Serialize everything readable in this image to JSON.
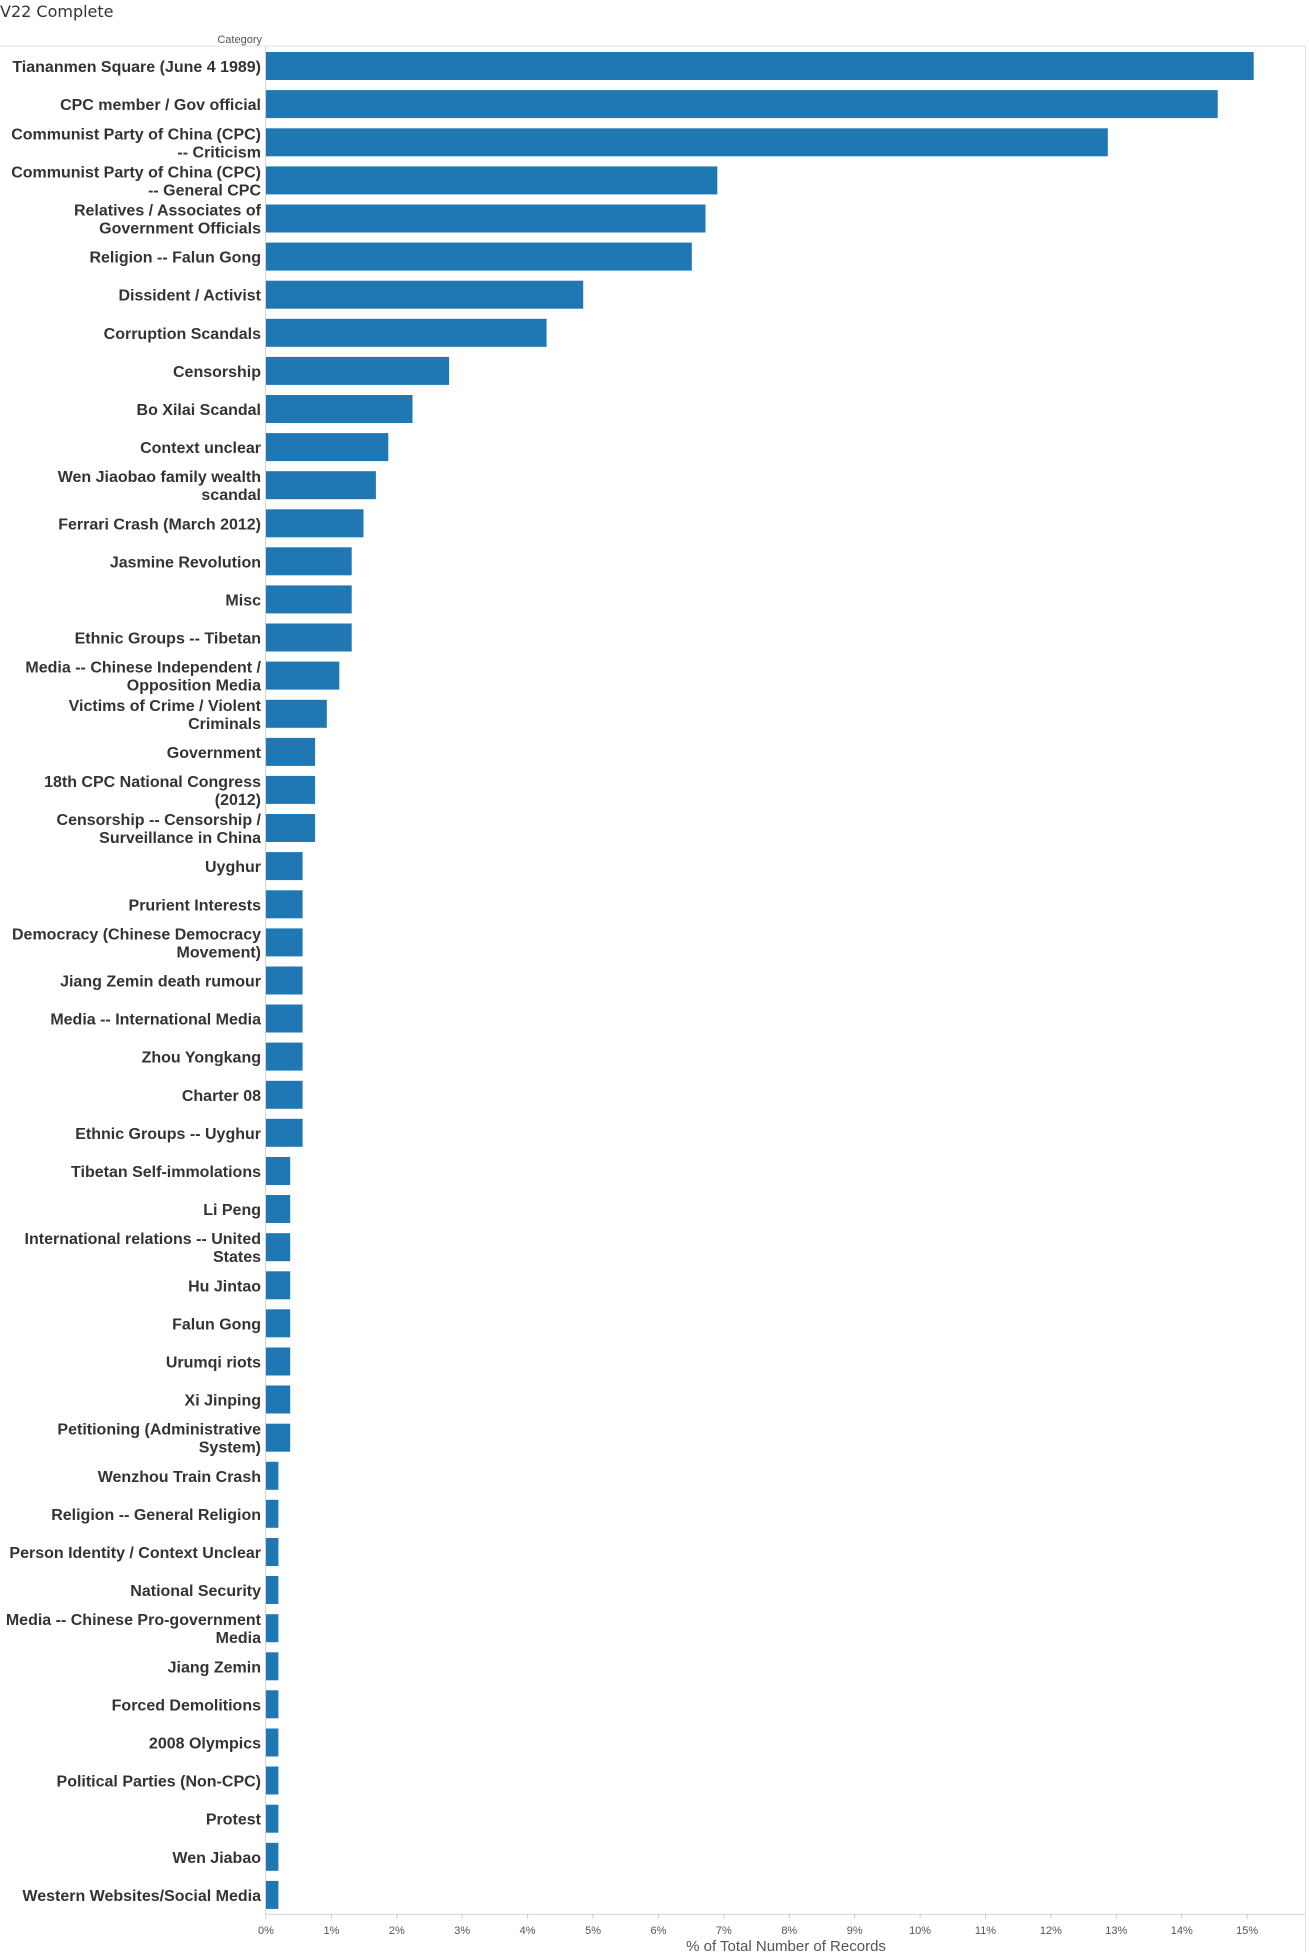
{
  "sheet": {
    "title": "V22 Complete"
  },
  "chart_data": {
    "type": "bar",
    "orientation": "horizontal",
    "title": "V22 Complete",
    "category_header": "Category",
    "xlabel": "% of Total Number of Records",
    "xlim": [
      0,
      15.9
    ],
    "grid": false,
    "bar_color": "#1f77b4",
    "categories": [
      "Tiananmen Square (June 4 1989)",
      "CPC member / Gov official",
      "Communist Party of China (CPC) -- Criticism",
      "Communist Party of China (CPC) -- General CPC",
      "Relatives / Associates of Government Officials",
      "Religion -- Falun Gong",
      "Dissident / Activist",
      "Corruption Scandals",
      "Censorship",
      "Bo Xilai Scandal",
      "Context unclear",
      "Wen Jiaobao family wealth scandal",
      "Ferrari Crash (March 2012)",
      "Jasmine Revolution",
      "Misc",
      "Ethnic Groups -- Tibetan",
      "Media -- Chinese Independent / Opposition Media",
      "Victims of Crime / Violent Criminals",
      "Government",
      "18th CPC National Congress (2012)",
      "Censorship -- Censorship / Surveillance in China",
      "Uyghur",
      "Prurient Interests",
      "Democracy (Chinese Democracy Movement)",
      "Jiang Zemin death rumour",
      "Media -- International Media",
      "Zhou Yongkang",
      "Charter 08",
      "Ethnic Groups -- Uyghur",
      "Tibetan Self-immolations",
      "Li Peng",
      "International relations -- United States",
      "Hu Jintao",
      "Falun Gong",
      "Urumqi riots",
      "Xi Jinping",
      "Petitioning (Administrative System)",
      "Wenzhou Train Crash",
      "Religion -- General Religion",
      "Person Identity / Context Unclear",
      "National Security",
      "Media -- Chinese Pro-government Media",
      "Jiang Zemin",
      "Forced Demolitions",
      "2008 Olympics",
      "Political Parties (Non-CPC)",
      "Protest",
      "Wen Jiabao",
      "Western Websites/Social Media"
    ],
    "display_lines": [
      [
        "Tiananmen Square (June 4 1989)"
      ],
      [
        "CPC member / Gov official"
      ],
      [
        "Communist Party of China (CPC)",
        "-- Criticism"
      ],
      [
        "Communist Party of China (CPC)",
        "-- General CPC"
      ],
      [
        "Relatives / Associates of",
        "Government Officials"
      ],
      [
        "Religion -- Falun Gong"
      ],
      [
        "Dissident / Activist"
      ],
      [
        "Corruption Scandals"
      ],
      [
        "Censorship"
      ],
      [
        "Bo Xilai Scandal"
      ],
      [
        "Context unclear"
      ],
      [
        "Wen Jiaobao family wealth",
        "scandal"
      ],
      [
        "Ferrari Crash (March 2012)"
      ],
      [
        "Jasmine Revolution"
      ],
      [
        "Misc"
      ],
      [
        "Ethnic Groups -- Tibetan"
      ],
      [
        "Media -- Chinese Independent /",
        "Opposition Media"
      ],
      [
        "Victims of Crime / Violent",
        "Criminals"
      ],
      [
        "Government"
      ],
      [
        "18th CPC National Congress",
        "(2012)"
      ],
      [
        "Censorship -- Censorship /",
        "Surveillance in China"
      ],
      [
        "Uyghur"
      ],
      [
        "Prurient Interests"
      ],
      [
        "Democracy (Chinese Democracy",
        "Movement)"
      ],
      [
        "Jiang Zemin death rumour"
      ],
      [
        "Media -- International Media"
      ],
      [
        "Zhou Yongkang"
      ],
      [
        "Charter 08"
      ],
      [
        "Ethnic Groups -- Uyghur"
      ],
      [
        "Tibetan Self-immolations"
      ],
      [
        "Li Peng"
      ],
      [
        "International relations -- United",
        "States"
      ],
      [
        "Hu Jintao"
      ],
      [
        "Falun Gong"
      ],
      [
        "Urumqi riots"
      ],
      [
        "Xi Jinping"
      ],
      [
        "Petitioning (Administrative",
        "System)"
      ],
      [
        "Wenzhou Train Crash"
      ],
      [
        "Religion -- General Religion"
      ],
      [
        "Person Identity / Context Unclear"
      ],
      [
        "National Security"
      ],
      [
        "Media -- Chinese Pro-government",
        "Media"
      ],
      [
        "Jiang Zemin"
      ],
      [
        "Forced Demolitions"
      ],
      [
        "2008 Olympics"
      ],
      [
        "Political Parties (Non-CPC)"
      ],
      [
        "Protest"
      ],
      [
        "Wen Jiabao"
      ],
      [
        "Western Websites/Social Media"
      ]
    ],
    "values": [
      15.1,
      14.55,
      12.87,
      6.9,
      6.72,
      6.51,
      4.85,
      4.29,
      2.8,
      2.24,
      1.87,
      1.68,
      1.49,
      1.31,
      1.31,
      1.31,
      1.12,
      0.93,
      0.75,
      0.75,
      0.75,
      0.56,
      0.56,
      0.56,
      0.56,
      0.56,
      0.56,
      0.56,
      0.56,
      0.37,
      0.37,
      0.37,
      0.37,
      0.37,
      0.37,
      0.37,
      0.37,
      0.19,
      0.19,
      0.19,
      0.19,
      0.19,
      0.19,
      0.19,
      0.19,
      0.19,
      0.19,
      0.19,
      0.19
    ],
    "x_ticks": [
      0,
      1,
      2,
      3,
      4,
      5,
      6,
      7,
      8,
      9,
      10,
      11,
      12,
      13,
      14,
      15
    ],
    "x_tick_labels": [
      "0%",
      "1%",
      "2%",
      "3%",
      "4%",
      "5%",
      "6%",
      "7%",
      "8%",
      "9%",
      "10%",
      "11%",
      "12%",
      "13%",
      "14%",
      "15%"
    ]
  }
}
